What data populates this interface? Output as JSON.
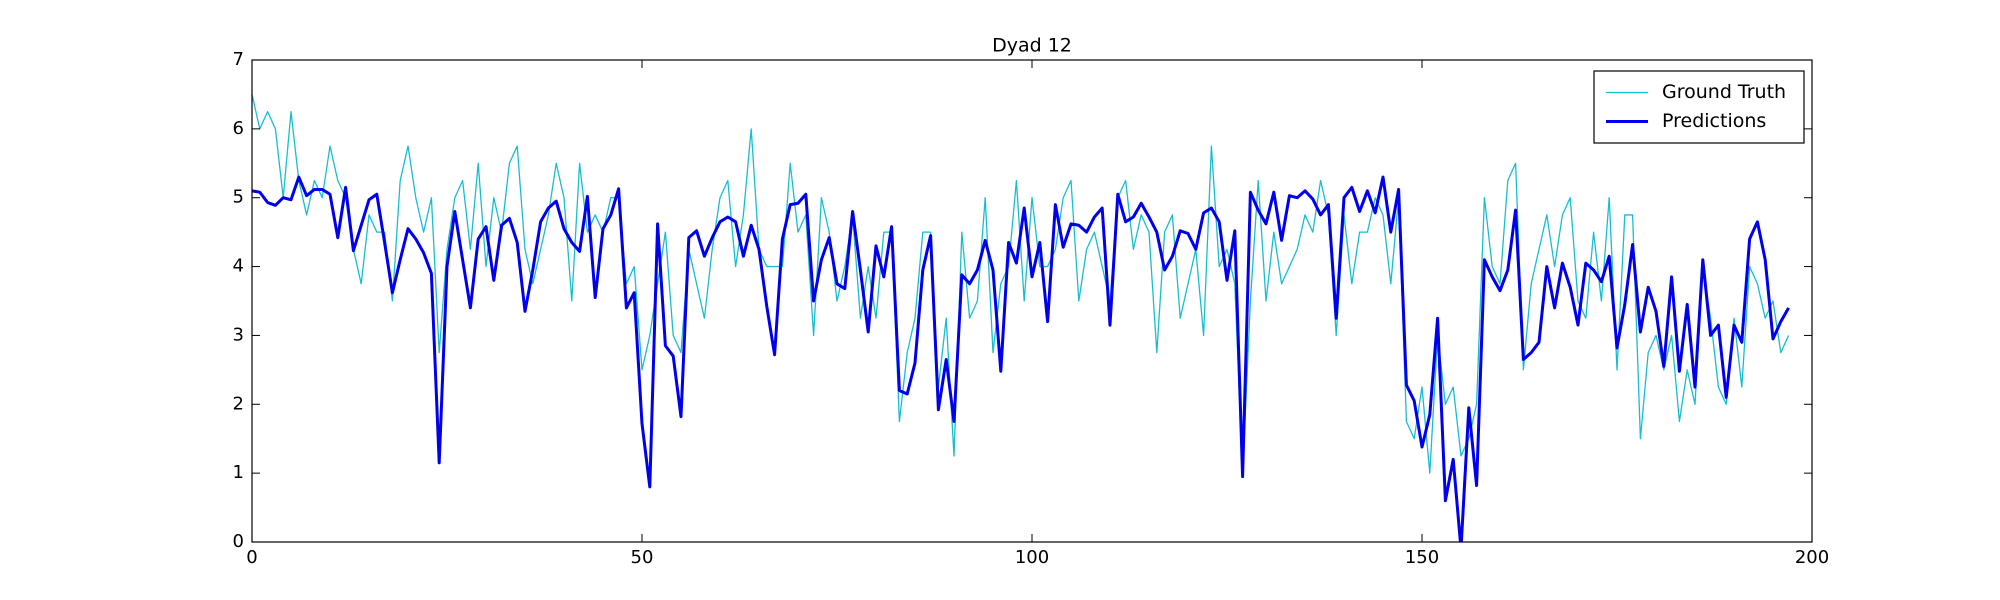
{
  "chart_data": {
    "type": "line",
    "title": "Dyad 12",
    "x": [
      0,
      1,
      2,
      3,
      4,
      5,
      6,
      7,
      8,
      9,
      10,
      11,
      12,
      13,
      14,
      15,
      16,
      17,
      18,
      19,
      20,
      21,
      22,
      23,
      24,
      25,
      26,
      27,
      28,
      29,
      30,
      31,
      32,
      33,
      34,
      35,
      36,
      37,
      38,
      39,
      40,
      41,
      42,
      43,
      44,
      45,
      46,
      47,
      48,
      49,
      50,
      51,
      52,
      53,
      54,
      55,
      56,
      57,
      58,
      59,
      60,
      61,
      62,
      63,
      64,
      65,
      66,
      67,
      68,
      69,
      70,
      71,
      72,
      73,
      74,
      75,
      76,
      77,
      78,
      79,
      80,
      81,
      82,
      83,
      84,
      85,
      86,
      87,
      88,
      89,
      90,
      91,
      92,
      93,
      94,
      95,
      96,
      97,
      98,
      99,
      100,
      101,
      102,
      103,
      104,
      105,
      106,
      107,
      108,
      109,
      110,
      111,
      112,
      113,
      114,
      115,
      116,
      117,
      118,
      119,
      120,
      121,
      122,
      123,
      124,
      125,
      126,
      127,
      128,
      129,
      130,
      131,
      132,
      133,
      134,
      135,
      136,
      137,
      138,
      139,
      140,
      141,
      142,
      143,
      144,
      145,
      146,
      147,
      148,
      149,
      150,
      151,
      152,
      153,
      154,
      155,
      156,
      157,
      158,
      159,
      160,
      161,
      162,
      163,
      164,
      165,
      166,
      167,
      168,
      169,
      170,
      171,
      172,
      173,
      174,
      175,
      176,
      177,
      178,
      179,
      180,
      181,
      182,
      183,
      184,
      185,
      186,
      187,
      188,
      189,
      190,
      191,
      192,
      193,
      194,
      195,
      196,
      197
    ],
    "series": [
      {
        "name": "Ground Truth",
        "color": "#17becf",
        "width": 1.3,
        "values": [
          6.5,
          6,
          6.25,
          6,
          5,
          6.25,
          5.25,
          4.75,
          5.25,
          5,
          5.75,
          5.25,
          5,
          4.25,
          3.75,
          4.75,
          4.5,
          4.5,
          3.5,
          5.25,
          5.75,
          5,
          4.5,
          5,
          2.75,
          4.25,
          5,
          5.25,
          4.25,
          5.5,
          4,
          5,
          4.5,
          5.5,
          5.75,
          4.25,
          3.75,
          4.25,
          4.75,
          5.5,
          5,
          3.5,
          5.5,
          4.5,
          4.75,
          4.5,
          5,
          5,
          3.75,
          4,
          2.5,
          3,
          3.75,
          4.5,
          3,
          2.75,
          4.25,
          3.75,
          3.25,
          4.25,
          5,
          5.25,
          4,
          4.75,
          6,
          4.25,
          4,
          4,
          4,
          5.5,
          4.5,
          4.75,
          3,
          5,
          4.5,
          3.5,
          4,
          4.75,
          3.25,
          4,
          3.25,
          4.5,
          4.5,
          1.75,
          2.75,
          3.25,
          4.5,
          4.5,
          2.25,
          3.25,
          1.25,
          4.5,
          3.25,
          3.5,
          5,
          2.75,
          3.75,
          4,
          5.25,
          3.5,
          5,
          4,
          4,
          4.25,
          5,
          5.25,
          3.5,
          4.25,
          4.5,
          4,
          3.5,
          5,
          5.25,
          4.25,
          4.75,
          4.5,
          2.75,
          4.5,
          4.75,
          3.25,
          3.75,
          4.25,
          3,
          5.75,
          4,
          4.25,
          3.75,
          1,
          3.5,
          5.25,
          3.5,
          4.5,
          3.75,
          4,
          4.25,
          4.75,
          4.5,
          5.25,
          4.75,
          3,
          4.75,
          3.75,
          4.5,
          4.5,
          5,
          4.75,
          3.75,
          5,
          1.75,
          1.5,
          2.25,
          1,
          3,
          2,
          2.25,
          1.25,
          1.5,
          2,
          5,
          4,
          3.75,
          5.25,
          5.5,
          2.5,
          3.75,
          4.25,
          4.75,
          4,
          4.75,
          5,
          3.5,
          3.25,
          4.5,
          3.5,
          5,
          2.5,
          4.75,
          4.75,
          1.5,
          2.75,
          3,
          2.5,
          3,
          1.75,
          2.5,
          2,
          4,
          3.25,
          2.25,
          2,
          3.25,
          2.25,
          4,
          3.75,
          3.25,
          3.5,
          2.75,
          3
        ]
      },
      {
        "name": "Predictions",
        "color": "#0000ee",
        "width": 3,
        "values": [
          5.1,
          5.08,
          4.93,
          4.89,
          5,
          4.97,
          5.3,
          5.03,
          5.12,
          5.12,
          5.05,
          4.42,
          5.15,
          4.23,
          4.6,
          4.97,
          5.05,
          4.35,
          3.62,
          4.1,
          4.55,
          4.4,
          4.2,
          3.9,
          1.15,
          4,
          4.8,
          4.1,
          3.4,
          4.4,
          4.58,
          3.8,
          4.6,
          4.7,
          4.35,
          3.35,
          3.95,
          4.65,
          4.85,
          4.95,
          4.55,
          4.35,
          4.22,
          5.02,
          3.55,
          4.55,
          4.75,
          5.13,
          3.4,
          3.62,
          1.72,
          0.8,
          4.62,
          2.85,
          2.7,
          1.82,
          4.42,
          4.52,
          4.15,
          4.42,
          4.65,
          4.72,
          4.65,
          4.15,
          4.6,
          4.25,
          3.42,
          2.72,
          4.4,
          4.9,
          4.92,
          5.05,
          3.5,
          4.1,
          4.42,
          3.75,
          3.68,
          4.8,
          3.95,
          3.05,
          4.3,
          3.85,
          4.58,
          2.2,
          2.15,
          2.6,
          3.95,
          4.45,
          1.92,
          2.65,
          1.75,
          3.88,
          3.75,
          3.95,
          4.38,
          3.95,
          2.48,
          4.35,
          4.05,
          4.85,
          3.85,
          4.35,
          3.2,
          4.9,
          4.28,
          4.62,
          4.6,
          4.5,
          4.72,
          4.85,
          3.15,
          5.05,
          4.65,
          4.72,
          4.92,
          4.72,
          4.5,
          3.95,
          4.15,
          4.52,
          4.48,
          4.25,
          4.78,
          4.85,
          4.65,
          3.8,
          4.52,
          0.95,
          5.08,
          4.82,
          4.62,
          5.08,
          4.38,
          5.03,
          5,
          5.1,
          4.98,
          4.75,
          4.9,
          3.25,
          5,
          5.15,
          4.8,
          5.1,
          4.78,
          5.3,
          4.5,
          5.12,
          2.28,
          2.05,
          1.38,
          1.85,
          3.25,
          0.6,
          1.2,
          -0.1,
          1.95,
          0.82,
          4.1,
          3.85,
          3.65,
          3.95,
          4.82,
          2.65,
          2.75,
          2.9,
          4,
          3.4,
          4.05,
          3.7,
          3.15,
          4.05,
          3.95,
          3.78,
          4.15,
          2.82,
          3.45,
          4.32,
          3.05,
          3.7,
          3.35,
          2.55,
          3.85,
          2.48,
          3.45,
          2.25,
          4.1,
          3,
          3.15,
          2.1,
          3.15,
          2.9,
          4.4,
          4.65,
          4.1,
          2.95,
          3.2,
          3.4
        ]
      }
    ],
    "xlim": [
      0,
      200
    ],
    "xticks": [
      0,
      50,
      100,
      150,
      200
    ],
    "ylim": [
      0,
      7
    ],
    "yticks": [
      0,
      1,
      2,
      3,
      4,
      5,
      6,
      7
    ],
    "legend": "upper right"
  }
}
